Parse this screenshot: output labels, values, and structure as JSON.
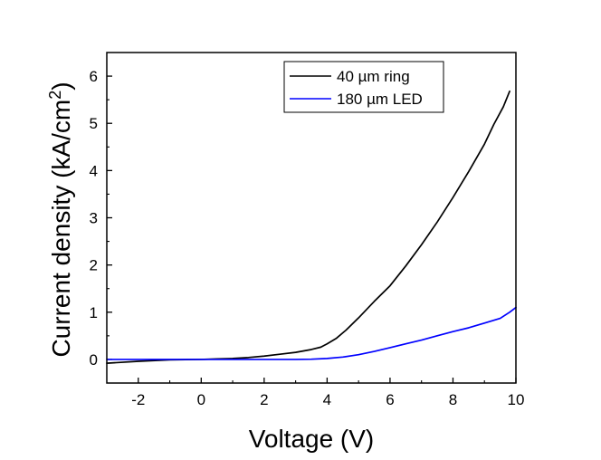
{
  "chart_data": {
    "type": "line",
    "title": "",
    "xlabel": "Voltage (V)",
    "ylabel_main": "Current density (kA/cm",
    "ylabel_sup": "2",
    "ylabel_close": ")",
    "xlim": [
      -3,
      10
    ],
    "ylim": [
      -0.5,
      6.5
    ],
    "xticks": [
      -2,
      0,
      2,
      4,
      6,
      8,
      10
    ],
    "yticks": [
      0,
      1,
      2,
      3,
      4,
      5,
      6
    ],
    "legend_position": "top-right",
    "series": [
      {
        "name": "40 µm ring",
        "color": "#000000",
        "x": [
          -3,
          -2,
          -1,
          0,
          0.5,
          1,
          1.5,
          2,
          2.5,
          3,
          3.5,
          3.8,
          4,
          4.3,
          4.6,
          5,
          5.5,
          6,
          6.5,
          7,
          7.5,
          8,
          8.5,
          9,
          9.3,
          9.6,
          9.8
        ],
        "y": [
          -0.08,
          -0.04,
          -0.01,
          0,
          0.01,
          0.02,
          0.04,
          0.07,
          0.11,
          0.15,
          0.21,
          0.26,
          0.33,
          0.45,
          0.62,
          0.88,
          1.23,
          1.56,
          1.98,
          2.43,
          2.91,
          3.43,
          3.98,
          4.56,
          4.98,
          5.35,
          5.68
        ]
      },
      {
        "name": "180 µm LED",
        "color": "#0000ff",
        "x": [
          -3,
          -2,
          -1,
          0,
          1,
          2,
          3,
          3.5,
          4,
          4.5,
          5,
          5.5,
          6,
          6.5,
          7,
          7.5,
          8,
          8.5,
          9,
          9.5,
          9.8,
          10
        ],
        "y": [
          0,
          0,
          0,
          0,
          0,
          0,
          0,
          0.005,
          0.02,
          0.05,
          0.1,
          0.17,
          0.25,
          0.33,
          0.41,
          0.5,
          0.59,
          0.67,
          0.77,
          0.87,
          1.0,
          1.1
        ]
      }
    ]
  }
}
